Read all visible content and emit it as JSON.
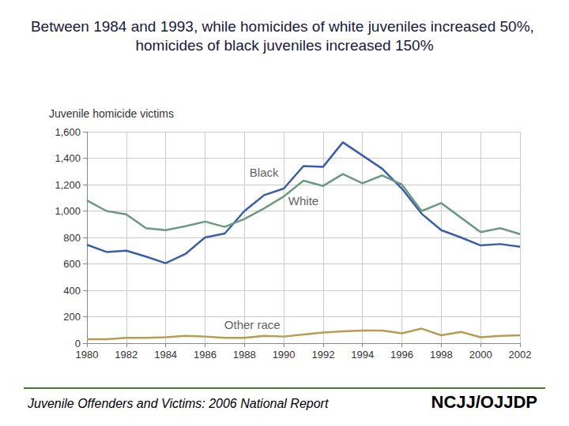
{
  "chart_data": {
    "type": "line",
    "title": "Between 1984 and 1993, while homicides of white juveniles increased 50%, homicides of black juveniles increased 150%",
    "y_label": "Juvenile homicide victims",
    "source": "Juvenile Offenders and Victims: 2006 National Report",
    "logo": "NCJJ/OJJDP",
    "x": [
      1980,
      1981,
      1982,
      1983,
      1984,
      1985,
      1986,
      1987,
      1988,
      1989,
      1990,
      1991,
      1992,
      1993,
      1994,
      1995,
      1996,
      1997,
      1998,
      1999,
      2000,
      2001,
      2002
    ],
    "series": [
      {
        "name": "Black",
        "color": "#3a5fa8",
        "values": [
          745,
          690,
          700,
          655,
          605,
          675,
          800,
          830,
          1000,
          1120,
          1170,
          1340,
          1335,
          1520,
          1420,
          1320,
          1170,
          980,
          855,
          800,
          740,
          750,
          730
        ]
      },
      {
        "name": "White",
        "color": "#6b9a80",
        "values": [
          1080,
          1000,
          975,
          870,
          855,
          885,
          920,
          880,
          940,
          1020,
          1110,
          1230,
          1190,
          1280,
          1210,
          1270,
          1200,
          1000,
          1060,
          950,
          840,
          870,
          825
        ]
      },
      {
        "name": "Other race",
        "color": "#b89c50",
        "values": [
          30,
          30,
          40,
          40,
          45,
          55,
          50,
          40,
          40,
          55,
          50,
          65,
          80,
          90,
          95,
          95,
          75,
          110,
          60,
          85,
          45,
          55,
          60
        ]
      }
    ],
    "annotations": [
      {
        "text": "Black",
        "x": 1989,
        "y": 1295
      },
      {
        "text": "White",
        "x": 1991,
        "y": 1080
      },
      {
        "text": "Other race",
        "x": 1988.4,
        "y": 143
      }
    ],
    "xlim": [
      1980,
      2002
    ],
    "xticks": [
      1980,
      1982,
      1984,
      1986,
      1988,
      1990,
      1992,
      1994,
      1996,
      1998,
      2000,
      2002
    ],
    "ylim": [
      0,
      1600
    ],
    "yticks": [
      0,
      200,
      400,
      600,
      800,
      {
        "value": 1000,
        "label": "1,000"
      },
      {
        "value": 1200,
        "label": "1,200"
      },
      {
        "value": 1400,
        "label": "1,400"
      },
      {
        "value": 1600,
        "label": "1,600"
      }
    ],
    "grid": true,
    "marker": "none",
    "line_style": "solid"
  }
}
